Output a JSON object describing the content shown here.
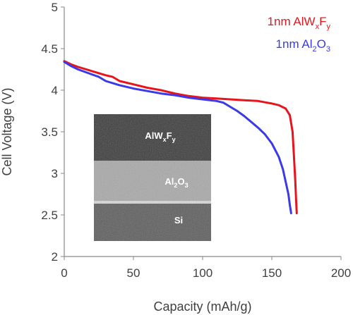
{
  "chart_data": {
    "type": "line",
    "xlabel": "Capacity (mAh/g)",
    "ylabel": "Cell Voltage (V)",
    "xlim": [
      0,
      200
    ],
    "ylim": [
      2,
      5
    ],
    "xticks": [
      "0",
      "50",
      "100",
      "150",
      "200"
    ],
    "yticks": [
      "2",
      "2.5",
      "3",
      "3.5",
      "4",
      "4.5",
      "5"
    ],
    "grid": false,
    "legend": "top-right",
    "series": [
      {
        "legend_prefix": "1nm AlW",
        "legend_sub1": "x",
        "legend_mid": "F",
        "legend_sub2": "y",
        "color": "#e8141c",
        "x": [
          0,
          5,
          10,
          20,
          30,
          35,
          40,
          50,
          60,
          70,
          80,
          90,
          100,
          110,
          120,
          130,
          140,
          150,
          155,
          160,
          163,
          165,
          166,
          167,
          167.5,
          168
        ],
        "y": [
          4.35,
          4.31,
          4.28,
          4.23,
          4.18,
          4.16,
          4.11,
          4.07,
          4.03,
          4.0,
          3.96,
          3.93,
          3.91,
          3.9,
          3.89,
          3.88,
          3.87,
          3.84,
          3.82,
          3.78,
          3.7,
          3.5,
          3.2,
          2.9,
          2.7,
          2.52
        ]
      },
      {
        "legend_prefix": "1nm Al",
        "legend_sub1": "2",
        "legend_mid": "O",
        "legend_sub2": "3",
        "color": "#3a3ae8",
        "x": [
          0,
          5,
          10,
          20,
          25,
          30,
          40,
          50,
          60,
          70,
          80,
          90,
          100,
          110,
          115,
          120,
          125,
          130,
          135,
          140,
          145,
          150,
          155,
          158,
          160,
          162,
          163,
          164
        ],
        "y": [
          4.34,
          4.29,
          4.25,
          4.19,
          4.16,
          4.11,
          4.06,
          4.02,
          3.99,
          3.96,
          3.94,
          3.91,
          3.89,
          3.87,
          3.85,
          3.8,
          3.75,
          3.69,
          3.62,
          3.55,
          3.47,
          3.36,
          3.2,
          3.05,
          2.9,
          2.75,
          2.62,
          2.52
        ]
      }
    ],
    "inset": {
      "layer_top_prefix": "AlW",
      "layer_top_sub1": "x",
      "layer_top_mid": "F",
      "layer_top_sub2": "y",
      "layer_mid_prefix": "Al",
      "layer_mid_sub1": "2",
      "layer_mid_mid": "O",
      "layer_mid_sub2": "3",
      "layer_bottom": "Si"
    }
  }
}
